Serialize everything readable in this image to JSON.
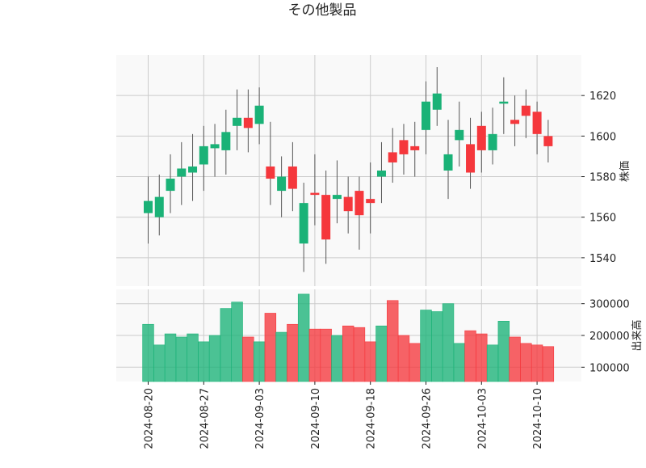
{
  "chart_data": {
    "type": "candlestick",
    "title": "その他製品",
    "price_axis": {
      "label": "株価",
      "ylim": [
        1526,
        1640
      ],
      "ticks": [
        1540,
        1560,
        1580,
        1600,
        1620
      ]
    },
    "volume_axis": {
      "label": "出来高",
      "ylim": [
        55000,
        345000
      ],
      "ticks": [
        100000,
        200000,
        300000
      ]
    },
    "x_ticks": [
      "2024-08-20",
      "2024-08-27",
      "2024-09-03",
      "2024-09-10",
      "2024-09-18",
      "2024-09-26",
      "2024-10-03",
      "2024-10-10"
    ],
    "x_tick_index": [
      0,
      5,
      10,
      15,
      20,
      25,
      30,
      35
    ],
    "colors": {
      "up": "#1ab277",
      "down": "#f5373c",
      "wick": "#555555"
    },
    "grid": true,
    "candles": [
      {
        "o": 1562,
        "h": 1580,
        "l": 1547,
        "c": 1568,
        "v": 235000
      },
      {
        "o": 1560,
        "h": 1581,
        "l": 1551,
        "c": 1570,
        "v": 170000
      },
      {
        "o": 1573,
        "h": 1591,
        "l": 1562,
        "c": 1579,
        "v": 205000
      },
      {
        "o": 1580,
        "h": 1597,
        "l": 1566,
        "c": 1584,
        "v": 195000
      },
      {
        "o": 1582,
        "h": 1601,
        "l": 1568,
        "c": 1585,
        "v": 205000
      },
      {
        "o": 1586,
        "h": 1605,
        "l": 1573,
        "c": 1595,
        "v": 180000
      },
      {
        "o": 1594,
        "h": 1606,
        "l": 1580,
        "c": 1596,
        "v": 200000
      },
      {
        "o": 1593,
        "h": 1613,
        "l": 1581,
        "c": 1602,
        "v": 285000
      },
      {
        "o": 1605,
        "h": 1623,
        "l": 1593,
        "c": 1609,
        "v": 305000
      },
      {
        "o": 1609,
        "h": 1623,
        "l": 1592,
        "c": 1604,
        "v": 195000
      },
      {
        "o": 1606,
        "h": 1624,
        "l": 1596,
        "c": 1615,
        "v": 180000
      },
      {
        "o": 1585,
        "h": 1607,
        "l": 1566,
        "c": 1579,
        "v": 270000
      },
      {
        "o": 1573,
        "h": 1590,
        "l": 1560,
        "c": 1580,
        "v": 210000
      },
      {
        "o": 1585,
        "h": 1597,
        "l": 1563,
        "c": 1574,
        "v": 235000
      },
      {
        "o": 1547,
        "h": 1577,
        "l": 1533,
        "c": 1567,
        "v": 330000
      },
      {
        "o": 1572,
        "h": 1591,
        "l": 1556,
        "c": 1571,
        "v": 220000
      },
      {
        "o": 1571,
        "h": 1583,
        "l": 1537,
        "c": 1549,
        "v": 220000
      },
      {
        "o": 1569,
        "h": 1588,
        "l": 1557,
        "c": 1571,
        "v": 200000
      },
      {
        "o": 1570,
        "h": 1580,
        "l": 1552,
        "c": 1563,
        "v": 230000
      },
      {
        "o": 1573,
        "h": 1580,
        "l": 1544,
        "c": 1561,
        "v": 225000
      },
      {
        "o": 1569,
        "h": 1587,
        "l": 1552,
        "c": 1567,
        "v": 180000
      },
      {
        "o": 1580,
        "h": 1597,
        "l": 1567,
        "c": 1583,
        "v": 230000
      },
      {
        "o": 1592,
        "h": 1604,
        "l": 1577,
        "c": 1587,
        "v": 310000
      },
      {
        "o": 1598,
        "h": 1606,
        "l": 1581,
        "c": 1591,
        "v": 200000
      },
      {
        "o": 1595,
        "h": 1607,
        "l": 1580,
        "c": 1593,
        "v": 175000
      },
      {
        "o": 1603,
        "h": 1627,
        "l": 1591,
        "c": 1617,
        "v": 280000
      },
      {
        "o": 1613,
        "h": 1634,
        "l": 1605,
        "c": 1621,
        "v": 275000
      },
      {
        "o": 1583,
        "h": 1608,
        "l": 1569,
        "c": 1591,
        "v": 300000
      },
      {
        "o": 1598,
        "h": 1617,
        "l": 1585,
        "c": 1603,
        "v": 175000
      },
      {
        "o": 1596,
        "h": 1609,
        "l": 1574,
        "c": 1582,
        "v": 215000
      },
      {
        "o": 1605,
        "h": 1612,
        "l": 1582,
        "c": 1593,
        "v": 205000
      },
      {
        "o": 1593,
        "h": 1614,
        "l": 1586,
        "c": 1601,
        "v": 170000
      },
      {
        "o": 1616,
        "h": 1629,
        "l": 1601,
        "c": 1617,
        "v": 245000
      },
      {
        "o": 1608,
        "h": 1620,
        "l": 1595,
        "c": 1606,
        "v": 195000
      },
      {
        "o": 1615,
        "h": 1623,
        "l": 1599,
        "c": 1610,
        "v": 175000
      },
      {
        "o": 1612,
        "h": 1617,
        "l": 1591,
        "c": 1601,
        "v": 170000
      },
      {
        "o": 1600,
        "h": 1608,
        "l": 1587,
        "c": 1595,
        "v": 165000
      }
    ]
  }
}
